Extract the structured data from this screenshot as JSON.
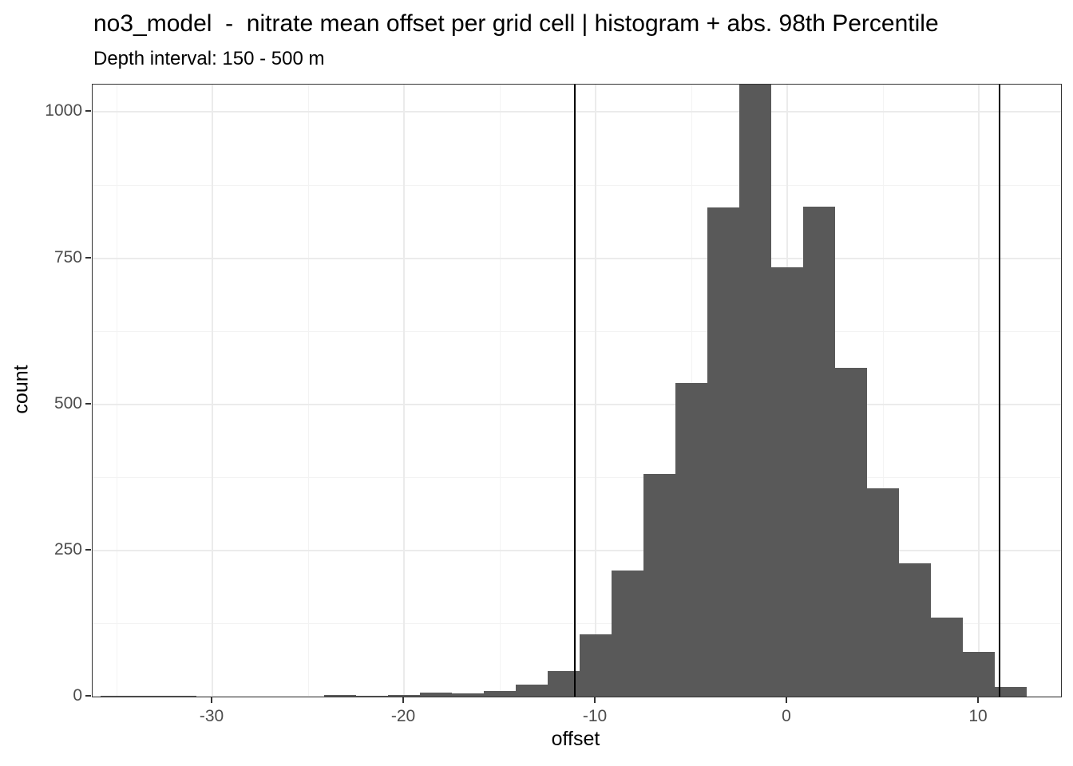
{
  "title": "no3_model  -  nitrate mean offset per grid cell | histogram + abs. 98th Percentile",
  "subtitle": "Depth interval: 150 - 500 m",
  "chart_data": {
    "type": "bar",
    "subtype": "histogram",
    "xlabel": "offset",
    "ylabel": "count",
    "xlim": [
      -36.25,
      14.29
    ],
    "ylim": [
      0,
      1047
    ],
    "x_major_ticks": [
      -30,
      -20,
      -10,
      0,
      10
    ],
    "x_minor_ticks": [
      -35,
      -25,
      -15,
      -5,
      5
    ],
    "y_major_ticks": [
      0,
      250,
      500,
      750,
      1000
    ],
    "y_minor_ticks": [
      125,
      375,
      625,
      875
    ],
    "binwidth": 1.667,
    "bins": [
      {
        "center": -35.0,
        "count": 2
      },
      {
        "center": -33.33,
        "count": 1
      },
      {
        "center": -31.67,
        "count": 1
      },
      {
        "center": -30.0,
        "count": 0
      },
      {
        "center": -28.33,
        "count": 0
      },
      {
        "center": -26.67,
        "count": 0
      },
      {
        "center": -25.0,
        "count": 0
      },
      {
        "center": -23.33,
        "count": 3
      },
      {
        "center": -21.67,
        "count": 2
      },
      {
        "center": -20.0,
        "count": 3
      },
      {
        "center": -18.33,
        "count": 7
      },
      {
        "center": -16.67,
        "count": 5
      },
      {
        "center": -15.0,
        "count": 9
      },
      {
        "center": -13.33,
        "count": 20
      },
      {
        "center": -11.67,
        "count": 44
      },
      {
        "center": -10.0,
        "count": 106
      },
      {
        "center": -8.33,
        "count": 216
      },
      {
        "center": -6.67,
        "count": 381
      },
      {
        "center": -5.0,
        "count": 537
      },
      {
        "center": -3.33,
        "count": 837
      },
      {
        "center": -1.67,
        "count": 1047
      },
      {
        "center": 0.0,
        "count": 735
      },
      {
        "center": 1.67,
        "count": 838
      },
      {
        "center": 3.33,
        "count": 562
      },
      {
        "center": 5.0,
        "count": 356
      },
      {
        "center": 6.67,
        "count": 228
      },
      {
        "center": 8.33,
        "count": 135
      },
      {
        "center": 10.0,
        "count": 76
      },
      {
        "center": 11.67,
        "count": 16
      },
      {
        "center": 13.33,
        "count": 0
      }
    ],
    "vlines": [
      -11.1,
      11.1
    ],
    "colors": {
      "bar_fill": "#595959",
      "vline": "#000000",
      "panel_border": "#333333",
      "grid_major": "#ebebeb",
      "grid_minor": "#f3f3f3",
      "tick_label": "#4d4d4d",
      "text": "#000000"
    },
    "grid": true,
    "legend": "none"
  }
}
